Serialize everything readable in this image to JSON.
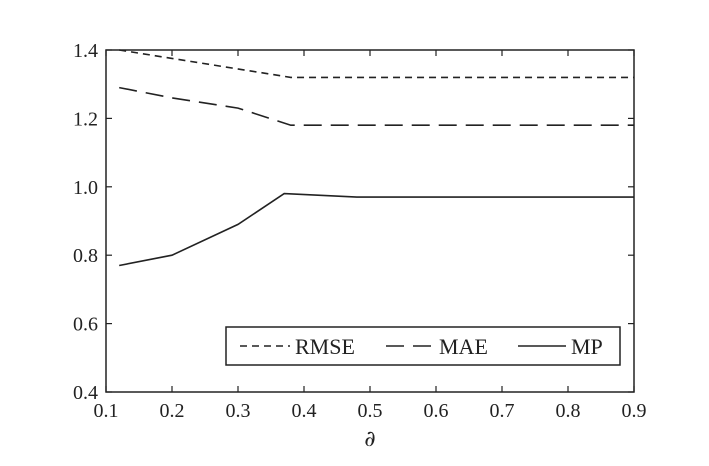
{
  "chart_data": {
    "type": "line",
    "title": "",
    "xlabel": "∂",
    "ylabel": "",
    "xlim": [
      0.1,
      0.9
    ],
    "ylim": [
      0.4,
      1.4
    ],
    "xticks": [
      "0.1",
      "0.2",
      "0.3",
      "0.4",
      "0.5",
      "0.6",
      "0.7",
      "0.8",
      "0.9"
    ],
    "yticks": [
      "0.4",
      "0.6",
      "0.8",
      "1.0",
      "1.2",
      "1.4"
    ],
    "grid": false,
    "legend_position": "bottom-right",
    "series": [
      {
        "name": "RMSE",
        "style": "short-dash",
        "x": [
          0.12,
          0.38,
          0.9
        ],
        "y": [
          1.4,
          1.32,
          1.32
        ]
      },
      {
        "name": "MAE",
        "style": "long-dash",
        "x": [
          0.12,
          0.2,
          0.3,
          0.38,
          0.9
        ],
        "y": [
          1.29,
          1.26,
          1.23,
          1.18,
          1.18
        ]
      },
      {
        "name": "MP",
        "style": "solid",
        "x": [
          0.12,
          0.2,
          0.3,
          0.37,
          0.48,
          0.9
        ],
        "y": [
          0.77,
          0.8,
          0.89,
          0.98,
          0.97,
          0.97
        ]
      }
    ]
  }
}
